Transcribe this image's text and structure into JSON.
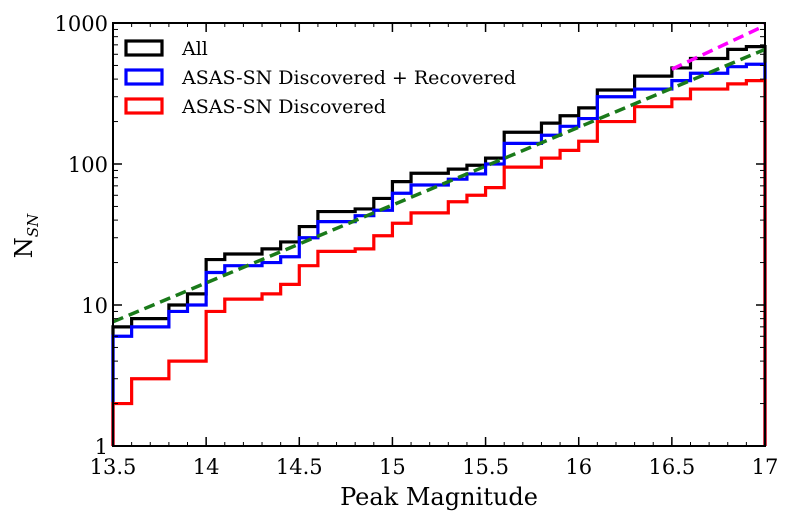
{
  "chart_data": {
    "type": "step",
    "title": "",
    "xlabel": "Peak Magnitude",
    "ylabel": "N",
    "ylabel_subscript": "SN",
    "xlim": [
      13.5,
      17
    ],
    "ylim": [
      1,
      1000
    ],
    "yscale": "log",
    "legend_position": "top-left",
    "xticks": [
      13.5,
      14,
      14.5,
      15,
      15.5,
      16,
      16.5,
      17
    ],
    "xtick_labels": [
      "13.5",
      "14",
      "14.5",
      "15",
      "15.5",
      "16",
      "16.5",
      "17"
    ],
    "yticks": [
      1,
      10,
      100,
      1000
    ],
    "ytick_labels": [
      "1",
      "10",
      "100",
      "1000"
    ],
    "bin_edges": [
      13.5,
      13.6,
      13.7,
      13.8,
      13.9,
      14.0,
      14.1,
      14.2,
      14.3,
      14.4,
      14.5,
      14.6,
      14.7,
      14.8,
      14.9,
      15.0,
      15.1,
      15.2,
      15.3,
      15.4,
      15.5,
      15.6,
      15.7,
      15.8,
      15.9,
      16.0,
      16.1,
      16.2,
      16.3,
      16.4,
      16.5,
      16.6,
      16.7,
      16.8,
      16.9,
      17.0
    ],
    "series": [
      {
        "name": "All",
        "color": "#000000",
        "values": [
          7,
          8,
          8,
          10,
          12,
          21,
          23,
          23,
          25,
          28,
          36,
          46,
          46,
          48,
          57,
          75,
          86,
          86,
          92,
          98,
          110,
          168,
          168,
          195,
          220,
          250,
          335,
          335,
          420,
          420,
          480,
          560,
          560,
          650,
          680
        ]
      },
      {
        "name": "ASAS-SN Discovered + Recovered",
        "color": "#0000ff",
        "values": [
          6,
          7,
          7,
          9,
          10,
          17,
          19,
          19,
          20,
          22,
          30,
          39,
          39,
          43,
          47,
          62,
          71,
          71,
          78,
          85,
          100,
          140,
          140,
          160,
          185,
          210,
          300,
          300,
          340,
          340,
          390,
          440,
          440,
          490,
          510
        ]
      },
      {
        "name": "ASAS-SN Discovered",
        "color": "#ff0000",
        "values": [
          2,
          3,
          3,
          4,
          4,
          9,
          11,
          11,
          12,
          14,
          19,
          24,
          24,
          25,
          31,
          38,
          45,
          45,
          54,
          60,
          68,
          95,
          95,
          110,
          125,
          145,
          200,
          200,
          255,
          255,
          290,
          340,
          340,
          370,
          390
        ]
      }
    ],
    "fit_lines": [
      {
        "name": "fit-green",
        "color": "#1a7a1a",
        "x": [
          13.5,
          17
        ],
        "y": [
          7.6,
          650
        ]
      },
      {
        "name": "fit-magenta",
        "color": "#ff00ff",
        "x": [
          16.5,
          17
        ],
        "y": [
          470,
          960
        ]
      }
    ]
  }
}
